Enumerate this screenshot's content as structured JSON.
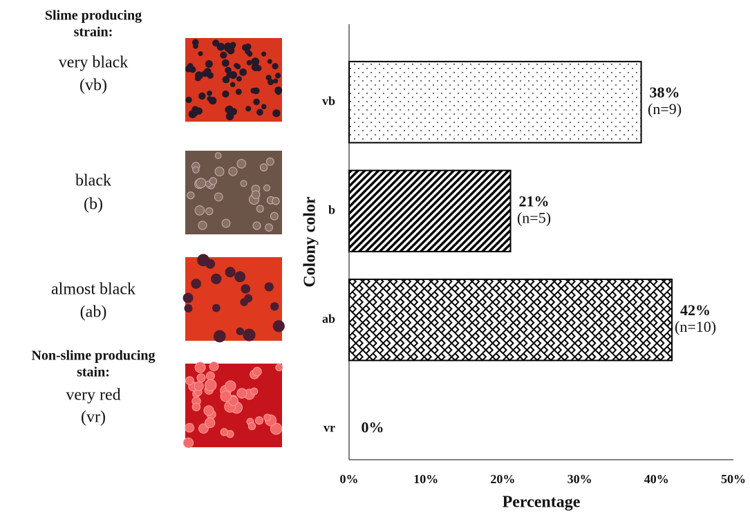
{
  "panel": {
    "groups": [
      {
        "heading": [
          "Slime producing",
          "strain:"
        ],
        "samples": [
          [
            "very black",
            "(vb)"
          ],
          [
            "black",
            "(b)"
          ],
          [
            "almost black",
            "(ab)"
          ]
        ]
      },
      {
        "heading": [
          "Non-slime producing",
          "stain:"
        ],
        "samples": [
          [
            "very red",
            "(vr)"
          ]
        ]
      }
    ]
  },
  "chart_data": {
    "type": "hbar",
    "categories": [
      "vb",
      "b",
      "ab",
      "vr"
    ],
    "values": [
      38,
      21,
      42,
      0
    ],
    "value_labels": [
      "38%",
      "21%",
      "42%",
      "0%"
    ],
    "sample_labels": [
      "(n=9)",
      "(n=5)",
      "(n=10)",
      null
    ],
    "bar_patterns": [
      "dots",
      "diagonal",
      "lattice",
      "dots"
    ],
    "color": "#000000",
    "xlabel": "Percentage",
    "ylabel": "Colony color",
    "xlim": [
      0,
      50
    ],
    "xticks": [
      {
        "value": 0,
        "label": "0%"
      },
      {
        "value": 10,
        "label": "10%"
      },
      {
        "value": 20,
        "label": "20%"
      },
      {
        "value": 30,
        "label": "30%"
      },
      {
        "value": 40,
        "label": "40%"
      },
      {
        "value": 50,
        "label": "50%"
      }
    ],
    "grid": false
  }
}
